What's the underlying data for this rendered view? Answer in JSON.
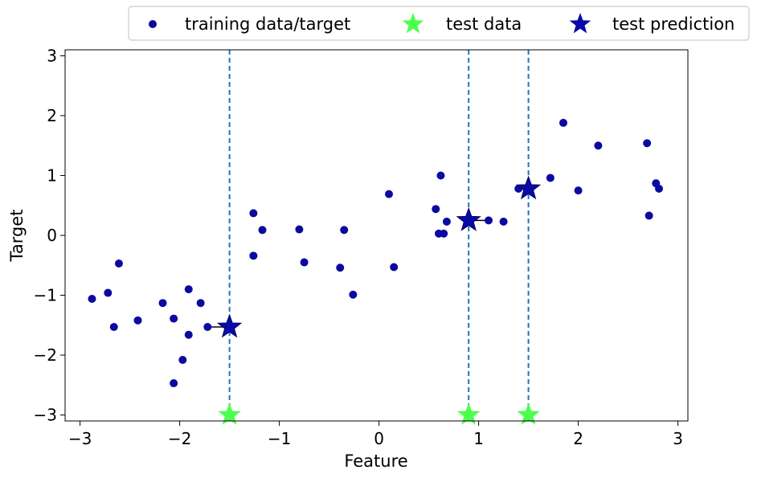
{
  "chart_data": {
    "type": "scatter",
    "xlabel": "Feature",
    "ylabel": "Target",
    "xlim": [
      -3.15,
      3.1
    ],
    "ylim": [
      -3.1,
      3.1
    ],
    "x_ticks": [
      -3,
      -2,
      -1,
      0,
      1,
      2,
      3
    ],
    "x_tick_labels": [
      "−3",
      "−2",
      "−1",
      "0",
      "1",
      "2",
      "3"
    ],
    "y_ticks": [
      -3,
      -2,
      -1,
      0,
      1,
      2,
      3
    ],
    "y_tick_labels": [
      "−3",
      "−2",
      "−1",
      "0",
      "1",
      "2",
      "3"
    ],
    "grid": false,
    "legend": {
      "placement": "top-center-outside",
      "entries": [
        {
          "label": "training data/target",
          "marker": "dot",
          "color": "#0a0aa0"
        },
        {
          "label": "test data",
          "marker": "star",
          "color": "#4dff4d"
        },
        {
          "label": "test prediction",
          "marker": "star",
          "color": "#0a0aa8"
        }
      ]
    },
    "series": [
      {
        "name": "training data/target",
        "marker": "dot",
        "color": "#0a0aa0",
        "points": [
          [
            -2.88,
            -1.06
          ],
          [
            -2.72,
            -0.96
          ],
          [
            -2.66,
            -1.53
          ],
          [
            -2.61,
            -0.47
          ],
          [
            -2.42,
            -1.42
          ],
          [
            -2.17,
            -1.13
          ],
          [
            -2.06,
            -1.39
          ],
          [
            -2.06,
            -2.47
          ],
          [
            -1.97,
            -2.08
          ],
          [
            -1.91,
            -1.66
          ],
          [
            -1.91,
            -0.9
          ],
          [
            -1.79,
            -1.13
          ],
          [
            -1.72,
            -1.53
          ],
          [
            -1.26,
            0.37
          ],
          [
            -1.26,
            -0.34
          ],
          [
            -1.17,
            0.09
          ],
          [
            -0.8,
            0.1
          ],
          [
            -0.75,
            -0.45
          ],
          [
            -0.39,
            -0.54
          ],
          [
            -0.35,
            0.09
          ],
          [
            -0.26,
            -0.99
          ],
          [
            0.1,
            0.69
          ],
          [
            0.15,
            -0.53
          ],
          [
            0.57,
            0.44
          ],
          [
            0.6,
            0.03
          ],
          [
            0.62,
            1.0
          ],
          [
            0.65,
            0.03
          ],
          [
            0.68,
            0.23
          ],
          [
            1.1,
            0.25
          ],
          [
            1.25,
            0.23
          ],
          [
            1.4,
            0.78
          ],
          [
            1.72,
            0.96
          ],
          [
            1.85,
            1.88
          ],
          [
            2.0,
            0.75
          ],
          [
            2.2,
            1.5
          ],
          [
            2.69,
            1.54
          ],
          [
            2.71,
            0.33
          ],
          [
            2.78,
            0.87
          ],
          [
            2.81,
            0.78
          ]
        ]
      },
      {
        "name": "test data",
        "marker": "star",
        "color": "#4dff4d",
        "points": [
          [
            -1.5,
            -3.0
          ],
          [
            0.9,
            -3.0
          ],
          [
            1.5,
            -3.0
          ]
        ]
      },
      {
        "name": "test prediction",
        "marker": "star",
        "color": "#0a0aa8",
        "points": [
          [
            -1.5,
            -1.53
          ],
          [
            0.9,
            0.25
          ],
          [
            1.5,
            0.78
          ]
        ]
      }
    ],
    "vertical_lines": {
      "x": [
        -1.5,
        0.9,
        1.5
      ],
      "style": "dashed",
      "color": "#1f77b4"
    },
    "neighbor_links": [
      {
        "from": [
          -1.72,
          -1.53
        ],
        "to": [
          -1.5,
          -1.53
        ]
      },
      {
        "from": [
          1.1,
          0.25
        ],
        "to": [
          0.9,
          0.25
        ]
      },
      {
        "from": [
          1.4,
          0.78
        ],
        "to": [
          1.5,
          0.78
        ]
      }
    ]
  }
}
